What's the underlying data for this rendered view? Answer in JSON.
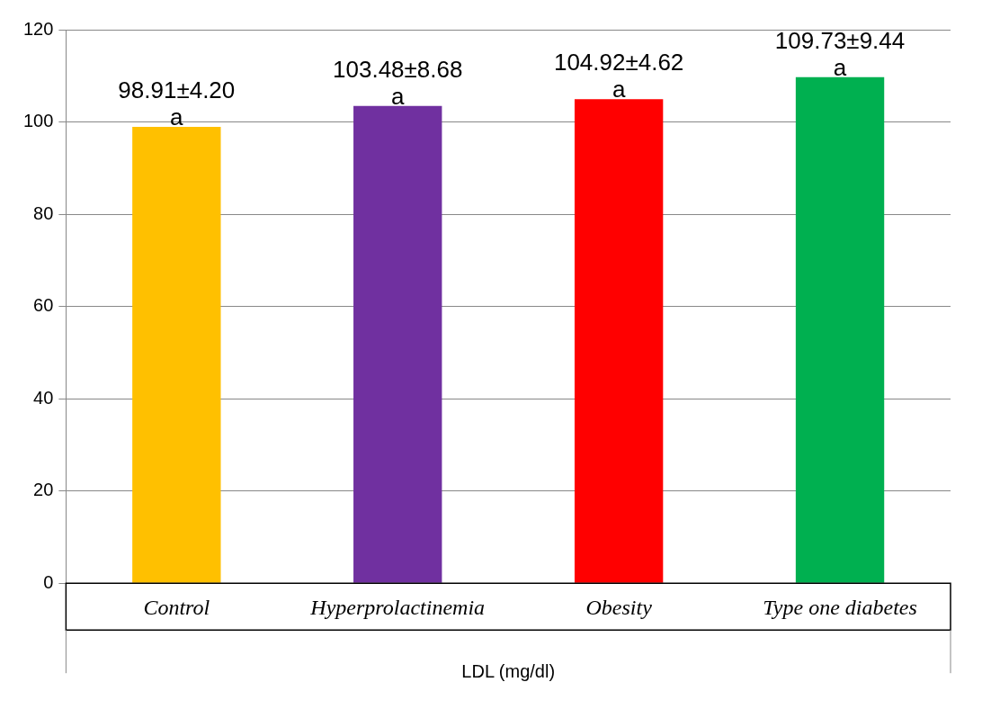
{
  "chart_data": {
    "type": "bar",
    "xlabel": "LDL (mg/dl)",
    "categories": [
      "Control",
      "Hyperprolactinemia",
      "Obesity",
      "Type one diabetes"
    ],
    "values": [
      98.91,
      103.48,
      104.92,
      109.73
    ],
    "colors": [
      "#ffc000",
      "#7030a0",
      "#ff0000",
      "#00b050"
    ],
    "value_labels": [
      "98.91±4.20",
      "103.48±8.68",
      "104.92±4.62",
      "109.73±9.44"
    ],
    "annotations": [
      {
        "text": "a",
        "x": "Control",
        "y": 98.91
      },
      {
        "text": "a",
        "x": "Hyperprolactinemia",
        "y": 103.48
      },
      {
        "text": "a",
        "x": "Obesity",
        "y": 104.92
      },
      {
        "text": "a",
        "x": "Type one diabetes",
        "y": 109.73
      }
    ],
    "ylim": [
      0,
      120
    ],
    "yticks": [
      0,
      20,
      40,
      60,
      80,
      100,
      120
    ],
    "grid": "y",
    "legend": false
  }
}
